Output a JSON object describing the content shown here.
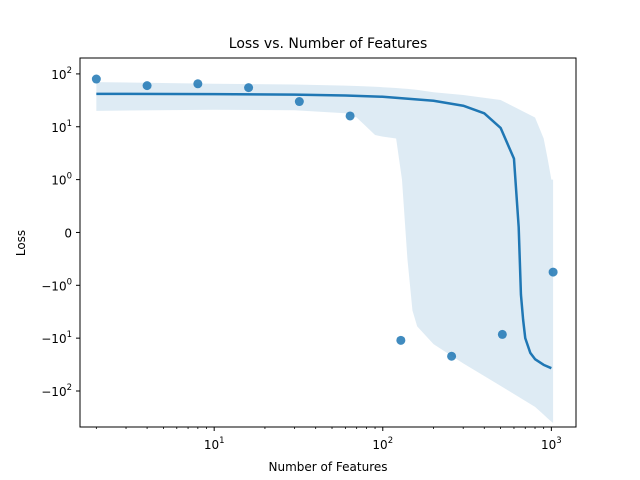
{
  "chart_data": {
    "type": "scatter",
    "title": "Loss vs. Number of Features",
    "xlabel": "Number of Features",
    "ylabel": "Loss",
    "x_scale": "log",
    "y_scale": "symlog",
    "xlim": [
      1.6,
      1400
    ],
    "ylim": [
      -480,
      200
    ],
    "grid": false,
    "legend": "none",
    "x_ticks": [
      {
        "value": 10,
        "base": "10",
        "exp": "1"
      },
      {
        "value": 100,
        "base": "10",
        "exp": "2"
      },
      {
        "value": 1000,
        "base": "10",
        "exp": "3"
      }
    ],
    "y_ticks": [
      {
        "value": 100,
        "base": "10",
        "exp": "2"
      },
      {
        "value": 10,
        "base": "10",
        "exp": "1"
      },
      {
        "value": 1,
        "base": "10",
        "exp": "0"
      },
      {
        "value": 0,
        "base": "0",
        "exp": ""
      },
      {
        "value": -1,
        "base": "−10",
        "exp": "0"
      },
      {
        "value": -10,
        "base": "−10",
        "exp": "1"
      },
      {
        "value": -100,
        "base": "−10",
        "exp": "2"
      }
    ],
    "points": {
      "x": [
        2,
        4,
        8,
        16,
        32,
        64,
        128,
        256,
        512,
        1024
      ],
      "y": [
        80,
        60,
        65,
        55,
        30,
        16,
        -11,
        -22,
        -8.5,
        -0.75
      ]
    },
    "fit_line": {
      "x": [
        2,
        10,
        30,
        60,
        100,
        200,
        300,
        400,
        500,
        600,
        640,
        660,
        680,
        700,
        750,
        800,
        900,
        1000
      ],
      "y": [
        42,
        41.5,
        40.5,
        39,
        37,
        31,
        25,
        18,
        9.5,
        2.5,
        0.1,
        -1.5,
        -4.5,
        -10,
        -19,
        -25,
        -32,
        -37
      ]
    },
    "confidence_band": {
      "x": [
        2,
        10,
        30,
        60,
        70,
        80,
        90,
        100,
        120,
        130,
        140,
        150,
        160,
        200,
        300,
        500,
        800,
        900,
        950,
        1000,
        1024
      ],
      "upper": [
        70,
        65,
        63,
        60,
        59,
        58,
        57,
        56,
        54,
        53,
        52,
        51,
        50,
        45,
        40,
        32,
        15,
        6,
        2.5,
        1,
        1
      ],
      "lower": [
        20,
        21,
        20.5,
        18,
        15,
        10,
        7,
        6.5,
        6,
        1,
        -0.5,
        -3,
        -6,
        -13,
        -30,
        -80,
        -200,
        -280,
        -330,
        -380,
        -400
      ]
    },
    "colors": {
      "points": "#1f77b4",
      "fit_line": "#1f77b4",
      "band": "#1f77b4"
    }
  }
}
